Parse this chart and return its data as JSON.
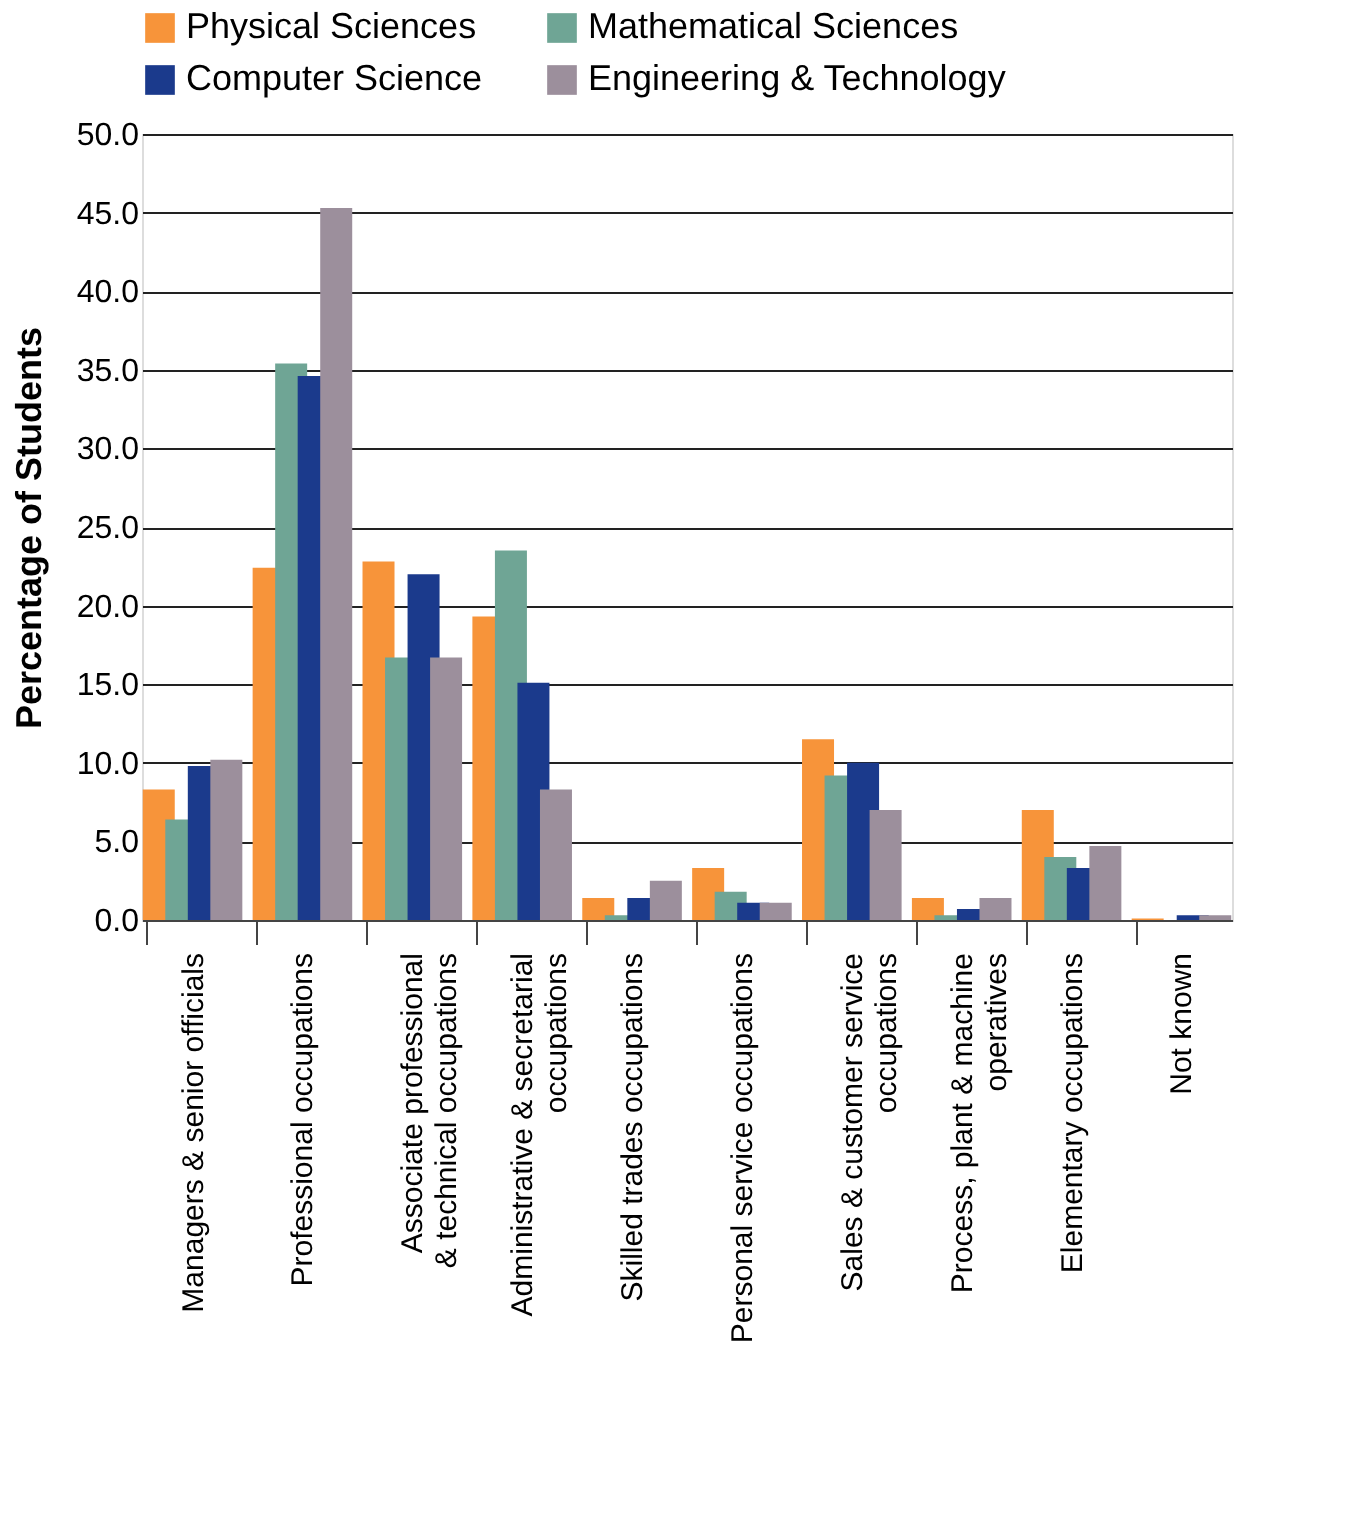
{
  "chart_data": {
    "type": "bar",
    "ylabel": "Percentage of Students",
    "categories": [
      "Managers & senior officials",
      "Professional occupations",
      "Associate professional\n& technical occupations",
      "Administrative & secretarial\noccupations",
      "Skilled trades occupations",
      "Personal service occupations",
      "Sales & customer service\noccupations",
      "Process, plant & machine\noperatives",
      "Elementary occupations",
      "Not known"
    ],
    "series": [
      {
        "name": "Physical Sciences",
        "color": "#f7943a",
        "values": [
          8.3,
          22.4,
          22.8,
          19.3,
          1.4,
          3.3,
          11.5,
          1.4,
          7.0,
          0.1
        ]
      },
      {
        "name": "Mathematical Sciences",
        "color": "#6fa595",
        "values": [
          6.4,
          35.4,
          16.7,
          23.5,
          0.3,
          1.8,
          9.2,
          0.3,
          4.0,
          0.0
        ]
      },
      {
        "name": "Computer Science",
        "color": "#1b3a8c",
        "values": [
          9.8,
          34.6,
          22.0,
          15.1,
          1.4,
          1.1,
          10.0,
          0.7,
          3.3,
          0.3
        ]
      },
      {
        "name": "Engineering & Technology",
        "color": "#9c8f9c",
        "values": [
          10.2,
          45.3,
          16.7,
          8.3,
          2.5,
          1.1,
          7.0,
          1.4,
          4.7,
          0.3
        ]
      }
    ],
    "ylim": [
      0,
      50
    ],
    "yticks": [
      {
        "value": 0,
        "label": "0.0"
      },
      {
        "value": 5,
        "label": "5.0"
      },
      {
        "value": 10,
        "label": "10.0"
      },
      {
        "value": 15,
        "label": "15.0"
      },
      {
        "value": 20,
        "label": "20.0"
      },
      {
        "value": 25,
        "label": "25.0"
      },
      {
        "value": 30,
        "label": "30.0"
      },
      {
        "value": 35,
        "label": "35.0"
      },
      {
        "value": 40,
        "label": "40.0"
      },
      {
        "value": 45,
        "label": "45.0"
      },
      {
        "value": 50,
        "label": "50.0"
      }
    ],
    "grid": "y",
    "legend": "top"
  }
}
